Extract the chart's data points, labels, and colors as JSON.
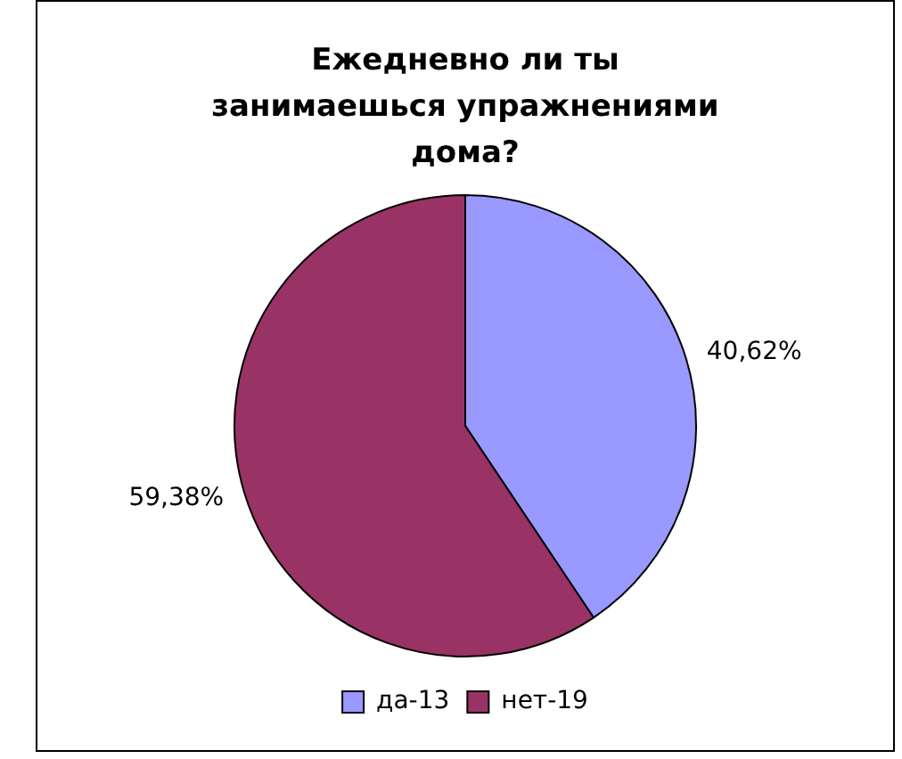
{
  "chart_data": {
    "type": "pie",
    "title": "Ежедневно ли ты занимаешься упражнениями дома?",
    "categories": [
      "да-13",
      "нет-19"
    ],
    "values": [
      40.62,
      59.38
    ],
    "value_labels": [
      "40,62%",
      "59,38%"
    ],
    "colors": [
      "#9999ff",
      "#993366"
    ],
    "legend": "bottom"
  }
}
